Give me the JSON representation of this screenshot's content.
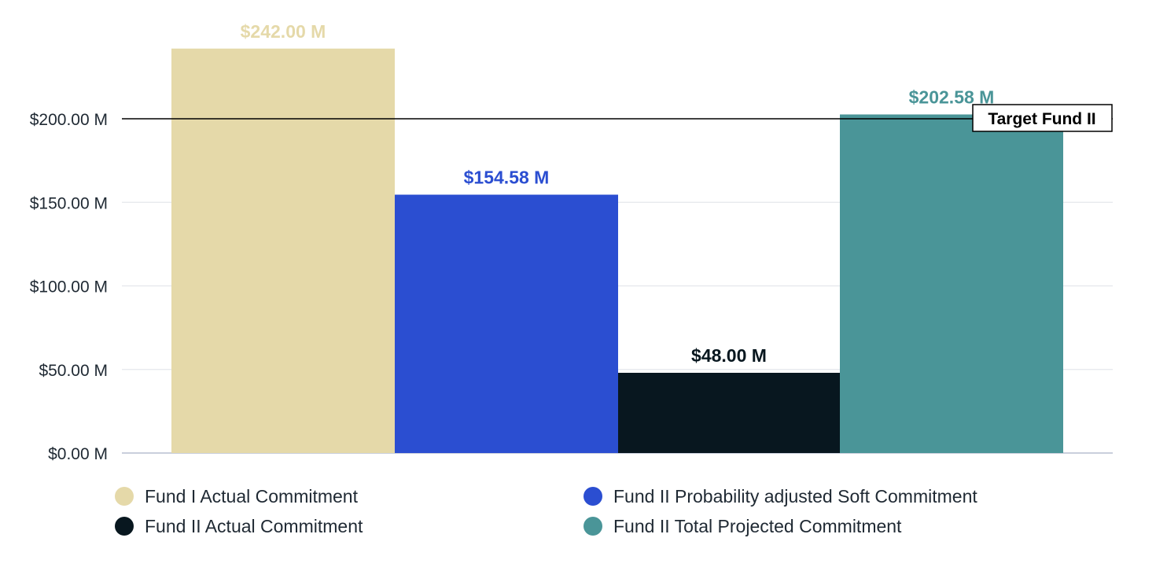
{
  "chart_data": {
    "type": "bar",
    "title": "",
    "xlabel": "",
    "ylabel": "",
    "ylim": [
      0,
      250
    ],
    "yticks": [
      0,
      50,
      100,
      150,
      200
    ],
    "ytick_labels": [
      "$0.00 M",
      "$50.00 M",
      "$100.00 M",
      "$150.00 M",
      "$200.00 M"
    ],
    "grid": true,
    "legend_position": "bottom",
    "series": [
      {
        "name": "Fund I Actual Commitment",
        "value": 242.0,
        "label": "$242.00 M",
        "color": "#e5d9a9",
        "label_color": "#e5d9a9"
      },
      {
        "name": "Fund II Probability adjusted Soft Commitment",
        "value": 154.58,
        "label": "$154.58 M",
        "color": "#2b4ed1",
        "label_color": "#2b4ed1"
      },
      {
        "name": "Fund II Actual Commitment",
        "value": 48.0,
        "label": "$48.00 M",
        "color": "#08171f",
        "label_color": "#08171f"
      },
      {
        "name": "Fund II Total Projected Commitment",
        "value": 202.58,
        "label": "$202.58 M",
        "color": "#4a9598",
        "label_color": "#4a9598"
      }
    ],
    "target_line": {
      "value": 200,
      "label": "Target Fund II"
    }
  }
}
